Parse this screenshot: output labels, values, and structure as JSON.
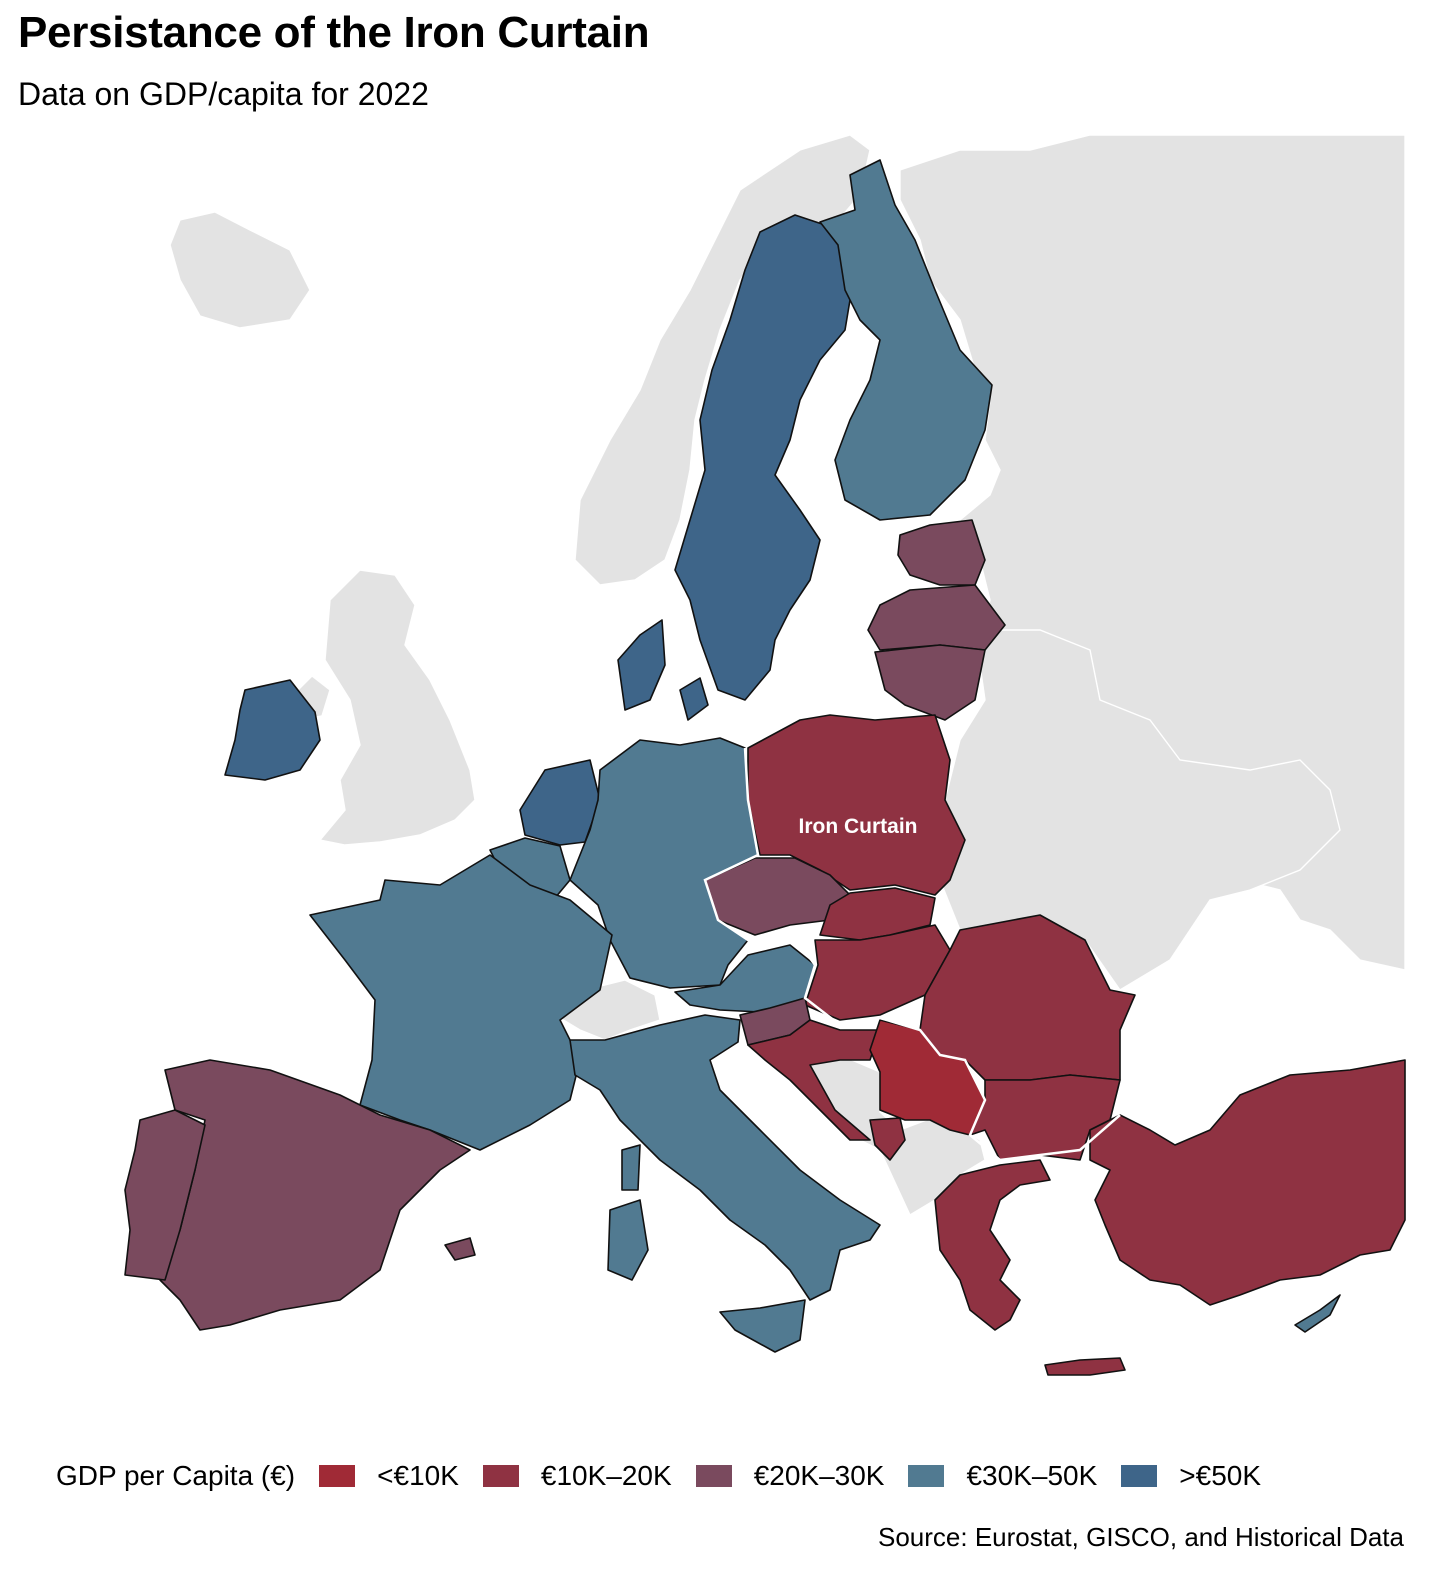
{
  "title": "Persistance of the Iron Curtain",
  "subtitle": "Data on GDP/capita for 2022",
  "annotation": "Iron Curtain",
  "legend": {
    "title": "GDP per Capita (€)",
    "items": [
      {
        "label": "<€10K",
        "color": "#a02a36"
      },
      {
        "label": "€10K–20K",
        "color": "#8f3242"
      },
      {
        "label": "€20K–30K",
        "color": "#7a4a5e"
      },
      {
        "label": "€30K–50K",
        "color": "#517a91"
      },
      {
        "label": ">€50K",
        "color": "#3e6589"
      }
    ]
  },
  "source": "Source: Eurostat, GISCO, and Historical Data",
  "colors": {
    "background_land": "#e3e3e3",
    "sea": "#ffffff",
    "iron_curtain_line": "#ffffff"
  }
}
